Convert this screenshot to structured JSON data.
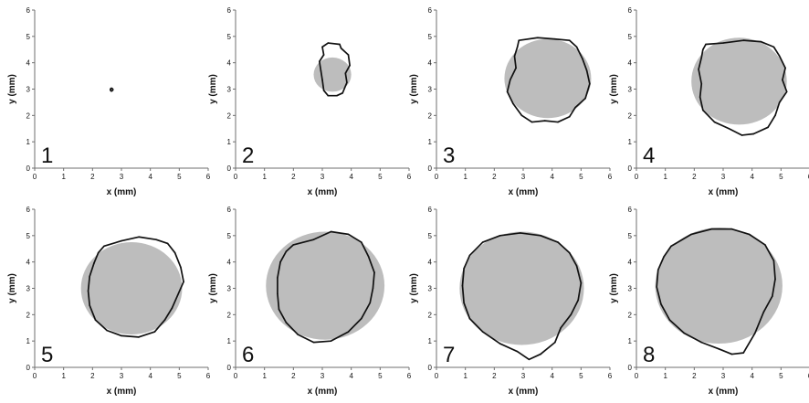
{
  "chart_data": [
    {
      "type": "scatter",
      "panel_label": "1",
      "xlabel": "x (mm)",
      "ylabel": "y (mm)",
      "xlim": [
        0,
        6
      ],
      "ylim": [
        0,
        6
      ],
      "xticks": [
        "0",
        "1",
        "2",
        "3",
        "4",
        "5",
        "6"
      ],
      "yticks": [
        "0",
        "1",
        "2",
        "3",
        "4",
        "5",
        "6"
      ],
      "grid": false,
      "filled_circle": null,
      "outline_points": [
        [
          2.64,
          2.93
        ],
        [
          2.67,
          2.93
        ],
        [
          2.7,
          2.96
        ],
        [
          2.7,
          3.0
        ],
        [
          2.67,
          3.03
        ],
        [
          2.64,
          3.03
        ],
        [
          2.62,
          3.0
        ],
        [
          2.62,
          2.96
        ]
      ]
    },
    {
      "type": "scatter",
      "panel_label": "2",
      "xlabel": "x (mm)",
      "ylabel": "y (mm)",
      "xlim": [
        0,
        6
      ],
      "ylim": [
        0,
        6
      ],
      "xticks": [
        "0",
        "1",
        "2",
        "3",
        "4",
        "5",
        "6"
      ],
      "yticks": [
        "0",
        "1",
        "2",
        "3",
        "4",
        "5",
        "6"
      ],
      "grid": false,
      "filled_circle": {
        "cx": 3.35,
        "cy": 3.55,
        "r": 0.65
      },
      "outline_points": [
        [
          3.0,
          4.6
        ],
        [
          3.2,
          4.75
        ],
        [
          3.6,
          4.7
        ],
        [
          3.65,
          4.55
        ],
        [
          3.9,
          4.3
        ],
        [
          3.95,
          3.9
        ],
        [
          3.8,
          3.6
        ],
        [
          3.85,
          3.25
        ],
        [
          3.7,
          2.85
        ],
        [
          3.5,
          2.75
        ],
        [
          3.2,
          2.75
        ],
        [
          3.05,
          2.95
        ],
        [
          3.0,
          3.35
        ],
        [
          2.95,
          3.7
        ],
        [
          2.9,
          4.05
        ],
        [
          3.05,
          4.3
        ]
      ]
    },
    {
      "type": "scatter",
      "panel_label": "3",
      "xlabel": "x (mm)",
      "ylabel": "y (mm)",
      "xlim": [
        0,
        6
      ],
      "ylim": [
        0,
        6
      ],
      "xticks": [
        "0",
        "1",
        "2",
        "3",
        "4",
        "5",
        "6"
      ],
      "yticks": [
        "0",
        "1",
        "2",
        "3",
        "4",
        "5",
        "6"
      ],
      "grid": false,
      "filled_circle": {
        "cx": 3.85,
        "cy": 3.4,
        "r": 1.5
      },
      "outline_points": [
        [
          2.85,
          4.85
        ],
        [
          3.5,
          4.95
        ],
        [
          4.1,
          4.9
        ],
        [
          4.6,
          4.85
        ],
        [
          4.85,
          4.6
        ],
        [
          5.05,
          4.15
        ],
        [
          5.2,
          3.7
        ],
        [
          5.3,
          3.2
        ],
        [
          5.15,
          2.65
        ],
        [
          4.8,
          2.3
        ],
        [
          4.6,
          1.95
        ],
        [
          4.2,
          1.75
        ],
        [
          3.75,
          1.8
        ],
        [
          3.3,
          1.75
        ],
        [
          2.95,
          2.0
        ],
        [
          2.65,
          2.45
        ],
        [
          2.45,
          2.9
        ],
        [
          2.55,
          3.35
        ],
        [
          2.75,
          3.8
        ],
        [
          2.7,
          4.25
        ],
        [
          2.8,
          4.6
        ]
      ]
    },
    {
      "type": "scatter",
      "panel_label": "4",
      "xlabel": "x (mm)",
      "ylabel": "y (mm)",
      "xlim": [
        0,
        6
      ],
      "ylim": [
        0,
        6
      ],
      "xticks": [
        "0",
        "1",
        "2",
        "3",
        "4",
        "5",
        "6"
      ],
      "yticks": [
        "0",
        "1",
        "2",
        "3",
        "4",
        "5",
        "6"
      ],
      "grid": false,
      "filled_circle": {
        "cx": 3.55,
        "cy": 3.3,
        "r": 1.65
      },
      "outline_points": [
        [
          2.4,
          4.7
        ],
        [
          3.0,
          4.75
        ],
        [
          3.7,
          4.85
        ],
        [
          4.3,
          4.8
        ],
        [
          4.75,
          4.6
        ],
        [
          4.95,
          4.25
        ],
        [
          5.15,
          3.8
        ],
        [
          5.05,
          3.35
        ],
        [
          5.2,
          2.9
        ],
        [
          4.95,
          2.5
        ],
        [
          4.8,
          2.0
        ],
        [
          4.55,
          1.55
        ],
        [
          4.05,
          1.3
        ],
        [
          3.65,
          1.25
        ],
        [
          3.2,
          1.5
        ],
        [
          2.7,
          1.75
        ],
        [
          2.3,
          2.2
        ],
        [
          2.2,
          2.7
        ],
        [
          2.25,
          3.2
        ],
        [
          2.15,
          3.75
        ],
        [
          2.25,
          4.2
        ],
        [
          2.3,
          4.5
        ]
      ]
    },
    {
      "type": "scatter",
      "panel_label": "5",
      "xlabel": "x (mm)",
      "ylabel": "y (mm)",
      "xlim": [
        0,
        6
      ],
      "ylim": [
        0,
        6
      ],
      "xticks": [
        "0",
        "1",
        "2",
        "3",
        "4",
        "5",
        "6"
      ],
      "yticks": [
        "0",
        "1",
        "2",
        "3",
        "4",
        "5",
        "6"
      ],
      "grid": false,
      "filled_circle": {
        "cx": 3.35,
        "cy": 3.0,
        "r": 1.75
      },
      "outline_points": [
        [
          2.4,
          4.6
        ],
        [
          3.0,
          4.8
        ],
        [
          3.6,
          4.95
        ],
        [
          4.2,
          4.85
        ],
        [
          4.6,
          4.7
        ],
        [
          4.85,
          4.35
        ],
        [
          5.05,
          3.8
        ],
        [
          5.15,
          3.25
        ],
        [
          4.95,
          2.75
        ],
        [
          4.75,
          2.25
        ],
        [
          4.5,
          1.8
        ],
        [
          4.15,
          1.35
        ],
        [
          3.6,
          1.15
        ],
        [
          3.0,
          1.2
        ],
        [
          2.5,
          1.4
        ],
        [
          2.1,
          1.8
        ],
        [
          1.9,
          2.35
        ],
        [
          1.85,
          2.9
        ],
        [
          1.9,
          3.45
        ],
        [
          2.05,
          3.95
        ],
        [
          2.2,
          4.35
        ]
      ]
    },
    {
      "type": "scatter",
      "panel_label": "6",
      "xlabel": "x (mm)",
      "ylabel": "y (mm)",
      "xlim": [
        0,
        6
      ],
      "ylim": [
        0,
        6
      ],
      "xticks": [
        "0",
        "1",
        "2",
        "3",
        "4",
        "5",
        "6"
      ],
      "yticks": [
        "0",
        "1",
        "2",
        "3",
        "4",
        "5",
        "6"
      ],
      "grid": false,
      "filled_circle": {
        "cx": 3.1,
        "cy": 3.1,
        "r": 2.05
      },
      "outline_points": [
        [
          2.0,
          4.65
        ],
        [
          2.7,
          4.85
        ],
        [
          3.3,
          5.15
        ],
        [
          3.9,
          5.05
        ],
        [
          4.35,
          4.75
        ],
        [
          4.6,
          4.2
        ],
        [
          4.8,
          3.6
        ],
        [
          4.75,
          3.0
        ],
        [
          4.65,
          2.45
        ],
        [
          4.35,
          1.85
        ],
        [
          3.9,
          1.35
        ],
        [
          3.3,
          1.0
        ],
        [
          2.7,
          0.95
        ],
        [
          2.15,
          1.25
        ],
        [
          1.75,
          1.7
        ],
        [
          1.5,
          2.2
        ],
        [
          1.45,
          2.8
        ],
        [
          1.45,
          3.4
        ],
        [
          1.55,
          4.0
        ],
        [
          1.75,
          4.4
        ]
      ]
    },
    {
      "type": "scatter",
      "panel_label": "7",
      "xlabel": "x (mm)",
      "ylabel": "y (mm)",
      "xlim": [
        0,
        6
      ],
      "ylim": [
        0,
        6
      ],
      "xticks": [
        "0",
        "1",
        "2",
        "3",
        "4",
        "5",
        "6"
      ],
      "yticks": [
        "0",
        "1",
        "2",
        "3",
        "4",
        "5",
        "6"
      ],
      "grid": false,
      "filled_circle": {
        "cx": 2.95,
        "cy": 3.0,
        "r": 2.15
      },
      "outline_points": [
        [
          1.6,
          4.75
        ],
        [
          2.2,
          5.0
        ],
        [
          2.9,
          5.1
        ],
        [
          3.6,
          5.0
        ],
        [
          4.2,
          4.75
        ],
        [
          4.6,
          4.35
        ],
        [
          4.85,
          3.85
        ],
        [
          5.0,
          3.2
        ],
        [
          4.9,
          2.55
        ],
        [
          4.65,
          2.0
        ],
        [
          4.3,
          1.5
        ],
        [
          4.1,
          0.95
        ],
        [
          3.6,
          0.5
        ],
        [
          3.2,
          0.3
        ],
        [
          2.8,
          0.6
        ],
        [
          2.2,
          0.9
        ],
        [
          1.6,
          1.35
        ],
        [
          1.15,
          1.85
        ],
        [
          0.95,
          2.45
        ],
        [
          0.9,
          3.1
        ],
        [
          0.95,
          3.75
        ],
        [
          1.15,
          4.25
        ]
      ]
    },
    {
      "type": "scatter",
      "panel_label": "8",
      "xlabel": "x (mm)",
      "ylabel": "y (mm)",
      "xlim": [
        0,
        6
      ],
      "ylim": [
        0,
        6
      ],
      "xticks": [
        "0",
        "1",
        "2",
        "3",
        "4",
        "5",
        "6"
      ],
      "yticks": [
        "0",
        "1",
        "2",
        "3",
        "4",
        "5",
        "6"
      ],
      "grid": false,
      "filled_circle": {
        "cx": 2.85,
        "cy": 3.1,
        "r": 2.2
      },
      "outline_points": [
        [
          1.2,
          4.6
        ],
        [
          1.9,
          5.05
        ],
        [
          2.6,
          5.25
        ],
        [
          3.3,
          5.25
        ],
        [
          3.9,
          5.05
        ],
        [
          4.45,
          4.65
        ],
        [
          4.75,
          4.05
        ],
        [
          4.8,
          3.35
        ],
        [
          4.7,
          2.7
        ],
        [
          4.4,
          2.1
        ],
        [
          4.1,
          1.3
        ],
        [
          3.7,
          0.55
        ],
        [
          3.3,
          0.5
        ],
        [
          2.85,
          0.7
        ],
        [
          2.25,
          0.95
        ],
        [
          1.65,
          1.3
        ],
        [
          1.15,
          1.8
        ],
        [
          0.85,
          2.4
        ],
        [
          0.7,
          3.05
        ],
        [
          0.75,
          3.7
        ],
        [
          0.95,
          4.2
        ]
      ]
    }
  ]
}
